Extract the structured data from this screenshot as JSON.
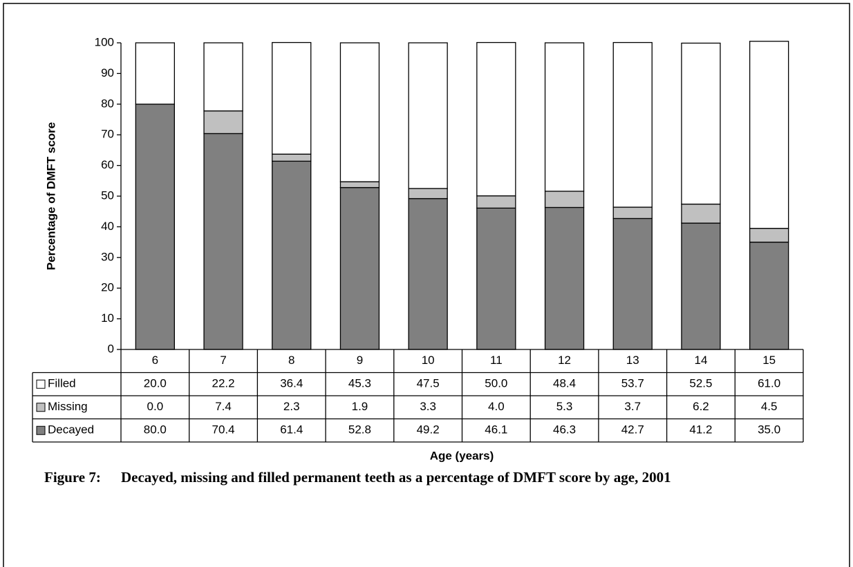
{
  "chart_data": {
    "type": "stacked_bar",
    "y_label": "Percentage of DMFT score",
    "x_label": "Age (years)",
    "categories": [
      "6",
      "7",
      "8",
      "9",
      "10",
      "11",
      "12",
      "13",
      "14",
      "15"
    ],
    "series": [
      {
        "name": "Decayed",
        "color": "#808080",
        "values": [
          80.0,
          70.4,
          61.4,
          52.8,
          49.2,
          46.1,
          46.3,
          42.7,
          41.2,
          35.0
        ],
        "value_labels": [
          "80.0",
          "70.4",
          "61.4",
          "52.8",
          "49.2",
          "46.1",
          "46.3",
          "42.7",
          "41.2",
          "35.0"
        ]
      },
      {
        "name": "Missing",
        "color": "#c0c0c0",
        "values": [
          0.0,
          7.4,
          2.3,
          1.9,
          3.3,
          4.0,
          5.3,
          3.7,
          6.2,
          4.5
        ],
        "value_labels": [
          "0.0",
          "7.4",
          "2.3",
          "1.9",
          "3.3",
          "4.0",
          "5.3",
          "3.7",
          "6.2",
          "4.5"
        ]
      },
      {
        "name": "Filled",
        "color": "#ffffff",
        "values": [
          20.0,
          22.2,
          36.4,
          45.3,
          47.5,
          50.0,
          48.4,
          53.7,
          52.5,
          61.0
        ],
        "value_labels": [
          "20.0",
          "22.2",
          "36.4",
          "45.3",
          "47.5",
          "50.0",
          "48.4",
          "53.7",
          "52.5",
          "61.0"
        ]
      }
    ],
    "ylim": [
      0,
      100
    ],
    "yticks": [
      0,
      10,
      20,
      30,
      40,
      50,
      60,
      70,
      80,
      90,
      100
    ]
  },
  "caption": {
    "label": "Figure 7:",
    "text": "Decayed, missing and filled permanent teeth as a percentage of DMFT score by age, 2001"
  }
}
